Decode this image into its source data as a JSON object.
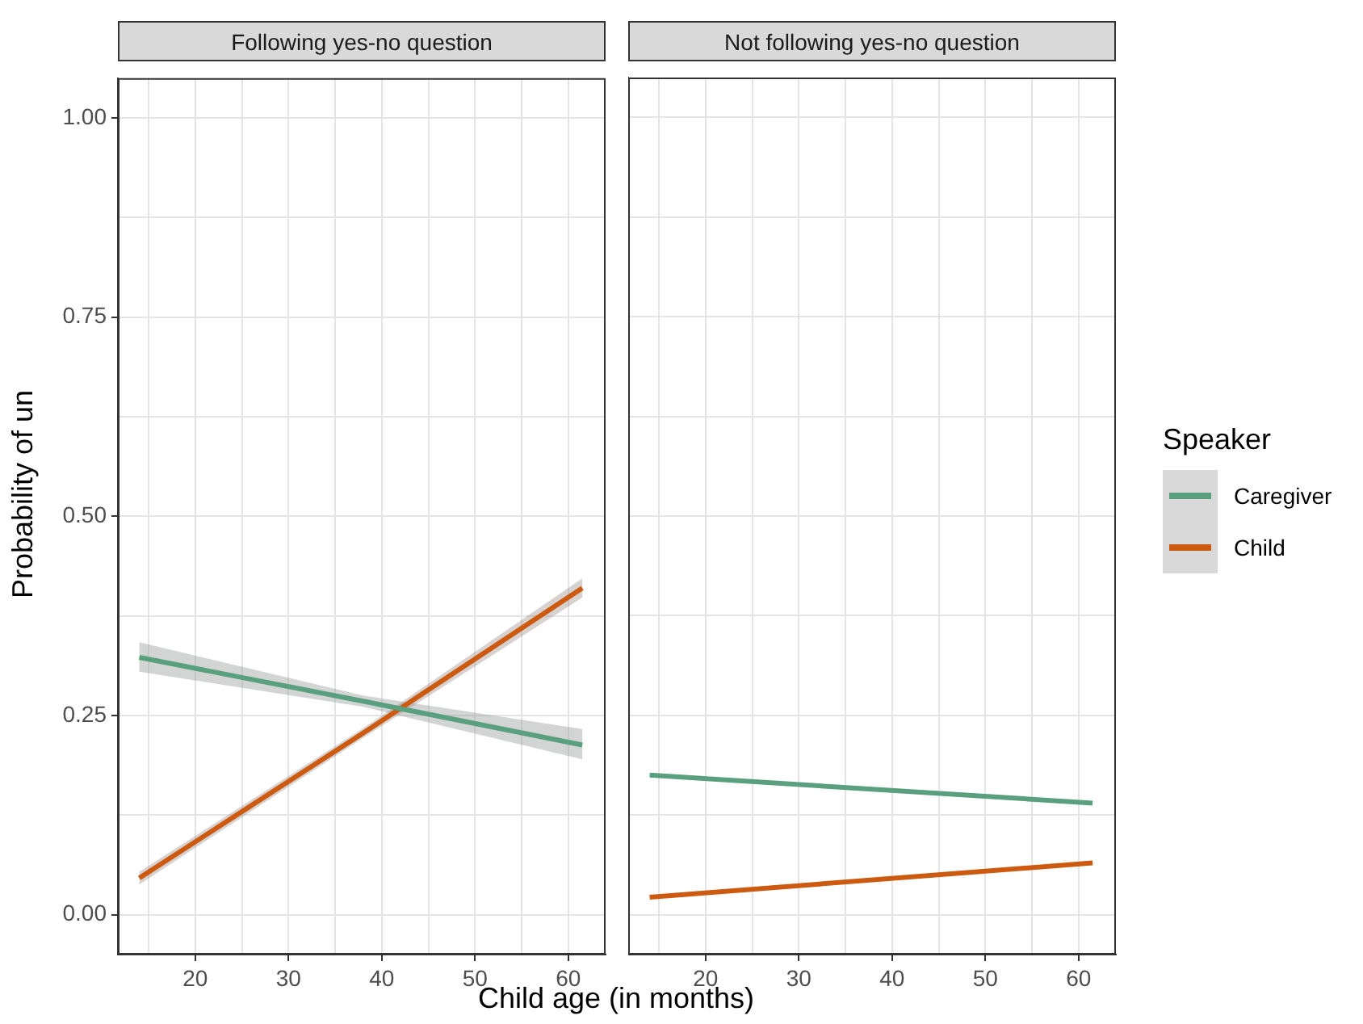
{
  "chart_data": [
    {
      "type": "line",
      "title": "Following yes-no question",
      "xlabel": "Child age (in months)",
      "ylabel": "Probability of un",
      "xlim": [
        11.7,
        64
      ],
      "xticks": [
        {
          "value": 15,
          "label": null
        },
        20,
        {
          "value": 25,
          "label": null
        },
        30,
        {
          "value": 35,
          "label": null
        },
        40,
        {
          "value": 45,
          "label": null
        },
        50,
        {
          "value": 55,
          "label": null
        },
        60
      ],
      "ylim": [
        -0.05,
        1.05
      ],
      "yticks": [
        {
          "value": 0,
          "label": "0.00"
        },
        {
          "value": 0.125,
          "label": null
        },
        {
          "value": 0.25,
          "label": "0.25"
        },
        {
          "value": 0.375,
          "label": null
        },
        {
          "value": 0.5,
          "label": "0.50"
        },
        {
          "value": 0.625,
          "label": null
        },
        {
          "value": 0.75,
          "label": "0.75"
        },
        {
          "value": 0.875,
          "label": null
        },
        {
          "value": 1,
          "label": "1.00"
        }
      ],
      "grid": true,
      "marker": "none",
      "line_style": "solid",
      "legend": "right",
      "legend_title": "Speaker",
      "series": [
        {
          "name": "Caregiver",
          "color": "#5aa07e",
          "x": [
            14,
            38,
            61.5
          ],
          "values": [
            0.323,
            0.268,
            0.213
          ],
          "lower": [
            0.305,
            0.261,
            0.195
          ],
          "upper": [
            0.342,
            0.275,
            0.233
          ]
        },
        {
          "name": "Child",
          "color": "#cc5a10",
          "x": [
            14,
            38,
            61.5
          ],
          "values": [
            0.046,
            0.228,
            0.41
          ],
          "lower": [
            0.038,
            0.222,
            0.398
          ],
          "upper": [
            0.054,
            0.234,
            0.422
          ]
        }
      ]
    },
    {
      "type": "line",
      "title": "Not following yes-no question",
      "tick_labels": "x",
      "xlim": [
        11.7,
        64
      ],
      "xticks": [
        {
          "value": 15,
          "label": null
        },
        20,
        {
          "value": 25,
          "label": null
        },
        30,
        {
          "value": 35,
          "label": null
        },
        40,
        {
          "value": 45,
          "label": null
        },
        50,
        {
          "value": 55,
          "label": null
        },
        60
      ],
      "ylim": [
        -0.05,
        1.05
      ],
      "yticks": [
        0,
        0.125,
        0.25,
        0.375,
        0.5,
        0.625,
        0.75,
        0.875,
        1
      ],
      "grid": true,
      "marker": "none",
      "line_style": "solid",
      "series": [
        {
          "color": "#5aa07e",
          "x": [
            14,
            61.5
          ],
          "values": [
            0.175,
            0.14
          ]
        },
        {
          "color": "#cc5a10",
          "x": [
            14,
            61.5
          ],
          "values": [
            0.022,
            0.065
          ]
        }
      ]
    }
  ]
}
